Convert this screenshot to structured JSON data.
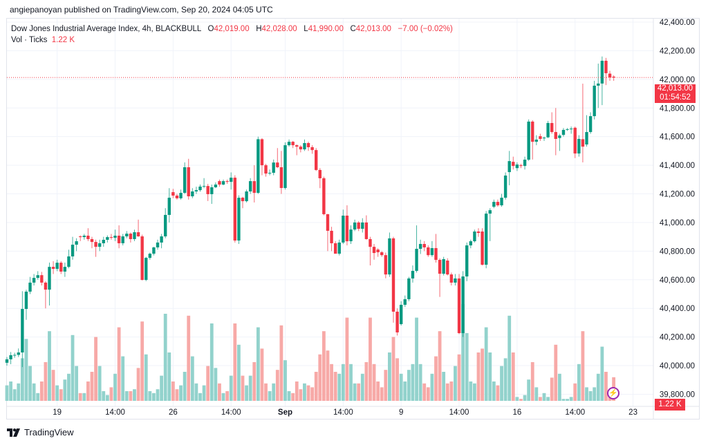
{
  "header": {
    "published": "angiepanoyan published on TradingView.com, Sep 20, 2024 04:05 UTC"
  },
  "legend": {
    "symbol": "Dow Jones Industrial Average Index, 4h, BLACKBULL",
    "o_label": "O",
    "o_value": "42,019.00",
    "h_label": "H",
    "h_value": "42,028.00",
    "l_label": "L",
    "l_value": "41,990.00",
    "c_label": "C",
    "c_value": "42,013.00",
    "change": "−7.00 (−0.02%)",
    "vol_label": "Vol · Ticks",
    "vol_value": "1.22 K"
  },
  "price_badge": {
    "price": "42,013.00",
    "countdown": "01:54:52"
  },
  "volume_badge": "1.22 K",
  "footer": {
    "brand": "TradingView"
  },
  "colors": {
    "up": "#089981",
    "down": "#f23645",
    "up_vol": "#92d2cc",
    "down_vol": "#f7a9a7",
    "grid": "#f0f3fa",
    "accent": "#9c27b0"
  },
  "chart_data": {
    "type": "candlestick",
    "title": "Dow Jones Industrial Average Index, 4h, BLACKBULL",
    "ylim": [
      39800,
      42400
    ],
    "y_ticks": [
      "42,400.00",
      "42,200.00",
      "42,000.00",
      "41,800.00",
      "41,600.00",
      "41,400.00",
      "41,200.00",
      "41,000.00",
      "40,800.00",
      "40,600.00",
      "40,400.00",
      "40,200.00",
      "40,000.00",
      "39,800.00"
    ],
    "y_tick_values": [
      42400,
      42200,
      42000,
      41800,
      41600,
      41400,
      41200,
      41000,
      40800,
      40600,
      40400,
      40200,
      40000,
      39800
    ],
    "x_ticks": [
      {
        "label": "19",
        "bar": 14
      },
      {
        "label": "14:00",
        "bar": 29
      },
      {
        "label": "26",
        "bar": 44
      },
      {
        "label": "14:00",
        "bar": 59
      },
      {
        "label": "Sep",
        "bar": 73,
        "bold": true
      },
      {
        "label": "14:00",
        "bar": 88
      },
      {
        "label": "9",
        "bar": 103
      },
      {
        "label": "14:00",
        "bar": 118
      },
      {
        "label": "16",
        "bar": 133
      },
      {
        "label": "14:00",
        "bar": 148
      },
      {
        "label": "23",
        "bar": 163
      }
    ],
    "last_price": 42013,
    "volume_unit": "K",
    "candles_fields": [
      "open",
      "high",
      "low",
      "close",
      "volume"
    ],
    "candles": [
      [
        40020,
        40060,
        40000,
        40044,
        0.8
      ],
      [
        40044,
        40095,
        40010,
        40073,
        1.0
      ],
      [
        40073,
        40090,
        40055,
        40075,
        0.6
      ],
      [
        40075,
        40120,
        40060,
        40092,
        0.9
      ],
      [
        40092,
        40520,
        39990,
        40396,
        2.2
      ],
      [
        40396,
        40530,
        40320,
        40517,
        3.2
      ],
      [
        40517,
        40620,
        40500,
        40580,
        1.8
      ],
      [
        40580,
        40640,
        40560,
        40613,
        0.9
      ],
      [
        40613,
        40660,
        40600,
        40632,
        0.4
      ],
      [
        40632,
        40655,
        40560,
        40580,
        1.0
      ],
      [
        40580,
        40590,
        40400,
        40531,
        2.0
      ],
      [
        40531,
        40720,
        40420,
        40690,
        3.6
      ],
      [
        40690,
        40730,
        40640,
        40676,
        1.6
      ],
      [
        40676,
        40740,
        40660,
        40719,
        0.8
      ],
      [
        40719,
        40730,
        40640,
        40657,
        0.6
      ],
      [
        40657,
        40720,
        40620,
        40690,
        1.1
      ],
      [
        40690,
        40810,
        40680,
        40763,
        1.4
      ],
      [
        40763,
        40900,
        40740,
        40845,
        3.4
      ],
      [
        40845,
        40890,
        40800,
        40869,
        1.8
      ],
      [
        40903,
        40910,
        40870,
        40898,
        0.4
      ],
      [
        40898,
        40920,
        40880,
        40908,
        0.4
      ],
      [
        40908,
        40960,
        40870,
        40884,
        1.0
      ],
      [
        40884,
        40900,
        40820,
        40864,
        1.5
      ],
      [
        40864,
        40880,
        40760,
        40830,
        3.3
      ],
      [
        40830,
        40880,
        40800,
        40855,
        1.8
      ],
      [
        40855,
        40900,
        40830,
        40879,
        0.5
      ],
      [
        40879,
        40910,
        40860,
        40898,
        0.3
      ],
      [
        40898,
        40920,
        40880,
        40893,
        0.7
      ],
      [
        40893,
        40950,
        40870,
        40908,
        1.4
      ],
      [
        40908,
        40980,
        40820,
        40855,
        3.8
      ],
      [
        40855,
        40920,
        40840,
        40903,
        2.3
      ],
      [
        40903,
        40940,
        40890,
        40922,
        0.5
      ],
      [
        40922,
        40930,
        40860,
        40884,
        0.5
      ],
      [
        40884,
        40950,
        40870,
        40932,
        0.6
      ],
      [
        40932,
        41020,
        40900,
        40903,
        1.7
      ],
      [
        40903,
        40915,
        40595,
        40599,
        4.1
      ],
      [
        40599,
        40760,
        40590,
        40753,
        2.4
      ],
      [
        40753,
        40790,
        40740,
        40782,
        0.5
      ],
      [
        40782,
        40830,
        40770,
        40826,
        0.4
      ],
      [
        40826,
        40880,
        40810,
        40860,
        0.6
      ],
      [
        40860,
        40920,
        40820,
        40903,
        1.3
      ],
      [
        40903,
        41100,
        40890,
        41053,
        4.5
      ],
      [
        41053,
        41240,
        41000,
        41173,
        2.5
      ],
      [
        41212,
        41235,
        41170,
        41188,
        1.0
      ],
      [
        41188,
        41200,
        41160,
        41169,
        0.6
      ],
      [
        41169,
        41230,
        41160,
        41207,
        0.8
      ],
      [
        41207,
        41420,
        41200,
        41386,
        1.5
      ],
      [
        41386,
        41445,
        41160,
        41183,
        4.4
      ],
      [
        41183,
        41240,
        41170,
        41217,
        2.3
      ],
      [
        41217,
        41250,
        41200,
        41226,
        0.9
      ],
      [
        41226,
        41265,
        41215,
        41251,
        0.4
      ],
      [
        41251,
        41310,
        41240,
        41255,
        0.8
      ],
      [
        41255,
        41270,
        41150,
        41198,
        1.8
      ],
      [
        41198,
        41265,
        41130,
        41246,
        4.0
      ],
      [
        41246,
        41280,
        41240,
        41265,
        1.7
      ],
      [
        41289,
        41300,
        41250,
        41265,
        0.9
      ],
      [
        41265,
        41300,
        41260,
        41289,
        0.4
      ],
      [
        41289,
        41300,
        41270,
        41284,
        0.5
      ],
      [
        41284,
        41350,
        41230,
        41313,
        1.3
      ],
      [
        41313,
        41330,
        40860,
        40874,
        4.0
      ],
      [
        40874,
        41190,
        40850,
        41173,
        2.9
      ],
      [
        41173,
        41180,
        41100,
        41149,
        1.3
      ],
      [
        41149,
        41230,
        41140,
        41217,
        0.8
      ],
      [
        41217,
        41310,
        41200,
        41289,
        1.3
      ],
      [
        41289,
        41400,
        41140,
        41207,
        2.0
      ],
      [
        41207,
        41600,
        41200,
        41582,
        3.8
      ],
      [
        41582,
        41590,
        41330,
        41400,
        2.7
      ],
      [
        41400,
        41410,
        41320,
        41342,
        0.9
      ],
      [
        41342,
        41370,
        41330,
        41347,
        0.5
      ],
      [
        41347,
        41440,
        41330,
        41419,
        0.9
      ],
      [
        41419,
        41520,
        41380,
        41386,
        1.6
      ],
      [
        41386,
        41500,
        41200,
        41241,
        3.9
      ],
      [
        41241,
        41560,
        41230,
        41540,
        2.1
      ],
      [
        41540,
        41580,
        41530,
        41564,
        0.5
      ],
      [
        41564,
        41570,
        41520,
        41540,
        0.4
      ],
      [
        41540,
        41545,
        41470,
        41530,
        1.0
      ],
      [
        41530,
        41540,
        41490,
        41511,
        0.6
      ],
      [
        41511,
        41580,
        41500,
        41555,
        0.9
      ],
      [
        41555,
        41565,
        41500,
        41526,
        0.8
      ],
      [
        41526,
        41540,
        41480,
        41506,
        0.7
      ],
      [
        41506,
        41520,
        41360,
        41367,
        1.5
      ],
      [
        41367,
        41380,
        41240,
        41309,
        2.4
      ],
      [
        41309,
        41320,
        41050,
        41058,
        3.6
      ],
      [
        41058,
        41060,
        40800,
        40942,
        2.6
      ],
      [
        40942,
        40970,
        40800,
        40855,
        1.9
      ],
      [
        40855,
        40870,
        40790,
        40782,
        1.5
      ],
      [
        40782,
        40880,
        40770,
        40860,
        1.4
      ],
      [
        40860,
        41090,
        40850,
        41048,
        1.9
      ],
      [
        41048,
        41120,
        40840,
        40869,
        4.3
      ],
      [
        40869,
        40980,
        40850,
        40951,
        1.9
      ],
      [
        40951,
        41020,
        40940,
        41000,
        0.9
      ],
      [
        41000,
        41010,
        40940,
        40956,
        0.9
      ],
      [
        40956,
        41030,
        40930,
        41000,
        1.4
      ],
      [
        41000,
        41050,
        40880,
        40884,
        2.0
      ],
      [
        40884,
        40900,
        40700,
        40830,
        4.3
      ],
      [
        40830,
        40850,
        40740,
        40787,
        1.9
      ],
      [
        40811,
        40820,
        40760,
        40792,
        1.0
      ],
      [
        40792,
        40800,
        40760,
        40772,
        0.7
      ],
      [
        40772,
        40790,
        40610,
        40637,
        1.6
      ],
      [
        40637,
        40930,
        40620,
        40889,
        2.5
      ],
      [
        40889,
        40900,
        40300,
        40377,
        3.3
      ],
      [
        40377,
        40400,
        40210,
        40232,
        2.2
      ],
      [
        40290,
        40450,
        40280,
        40425,
        1.4
      ],
      [
        40425,
        40490,
        40410,
        40464,
        1.0
      ],
      [
        40464,
        40620,
        40450,
        40609,
        1.6
      ],
      [
        40609,
        40700,
        40580,
        40662,
        1.9
      ],
      [
        40662,
        40980,
        40650,
        40816,
        4.3
      ],
      [
        40816,
        40880,
        40780,
        40850,
        1.9
      ],
      [
        40850,
        40870,
        40800,
        40826,
        0.9
      ],
      [
        40826,
        40840,
        40760,
        40772,
        0.7
      ],
      [
        40772,
        40870,
        40760,
        40821,
        1.4
      ],
      [
        40821,
        40920,
        40720,
        40739,
        2.3
      ],
      [
        40739,
        40750,
        40480,
        40642,
        3.6
      ],
      [
        40642,
        40760,
        40630,
        40744,
        1.5
      ],
      [
        40734,
        40750,
        40630,
        40637,
        0.9
      ],
      [
        40637,
        40650,
        40560,
        40580,
        1.0
      ],
      [
        40580,
        40640,
        40560,
        40609,
        1.8
      ],
      [
        40609,
        40640,
        40220,
        40227,
        2.4
      ],
      [
        40227,
        40660,
        40200,
        40623,
        5.0
      ],
      [
        40623,
        40860,
        40590,
        40840,
        3.5
      ],
      [
        40840,
        40880,
        40820,
        40869,
        1.0
      ],
      [
        40869,
        40950,
        40860,
        40937,
        0.9
      ],
      [
        40937,
        40960,
        40900,
        40927,
        2.5
      ],
      [
        40937,
        40960,
        40700,
        40705,
        2.7
      ],
      [
        40705,
        41080,
        40680,
        41062,
        3.8
      ],
      [
        41062,
        41100,
        40870,
        41086,
        2.5
      ],
      [
        41110,
        41160,
        41100,
        41144,
        1.0
      ],
      [
        41144,
        41160,
        41110,
        41120,
        0.8
      ],
      [
        41120,
        41200,
        41110,
        41173,
        1.8
      ],
      [
        41173,
        41350,
        41160,
        41328,
        2.2
      ],
      [
        41352,
        41500,
        41260,
        41429,
        4.4
      ],
      [
        41424,
        41460,
        41370,
        41395,
        2.5
      ],
      [
        41380,
        41420,
        41360,
        41405,
        0.2
      ],
      [
        41400,
        41410,
        41380,
        41395,
        0.1
      ],
      [
        41395,
        41460,
        41370,
        41439,
        0.3
      ],
      [
        41439,
        41720,
        41430,
        41705,
        1.1
      ],
      [
        41705,
        41715,
        41440,
        41564,
        2.0
      ],
      [
        41564,
        41610,
        41540,
        41579,
        0.7
      ],
      [
        41603,
        41620,
        41570,
        41584,
        0.2
      ],
      [
        41588,
        41600,
        41570,
        41593,
        0.4
      ],
      [
        41595,
        41710,
        41590,
        41695,
        0.2
      ],
      [
        41695,
        41770,
        41620,
        41632,
        1.2
      ],
      [
        41632,
        41800,
        41470,
        41584,
        2.9
      ],
      [
        41590,
        41620,
        41500,
        41608,
        1.4
      ],
      [
        41612,
        41660,
        41600,
        41647,
        0.1
      ],
      [
        41648,
        41660,
        41640,
        41652,
        0.1
      ],
      [
        41652,
        41670,
        41620,
        41656,
        0.2
      ],
      [
        41662,
        41670,
        41450,
        41482,
        0.9
      ],
      [
        41482,
        41610,
        41460,
        41584,
        1.9
      ],
      [
        41582,
        41970,
        41420,
        41530,
        3.6
      ],
      [
        41545,
        41750,
        41530,
        41632,
        0.7
      ],
      [
        41632,
        41770,
        41620,
        41743,
        0.5
      ],
      [
        41743,
        41990,
        41720,
        41956,
        0.7
      ],
      [
        41956,
        42110,
        41800,
        41971,
        1.4
      ],
      [
        41971,
        42160,
        41820,
        42130,
        2.8
      ],
      [
        42130,
        42150,
        41960,
        42043,
        1.5
      ],
      [
        42040,
        42060,
        41990,
        42014,
        0.4
      ],
      [
        42019,
        42028,
        41990,
        42013,
        1.22
      ]
    ]
  }
}
